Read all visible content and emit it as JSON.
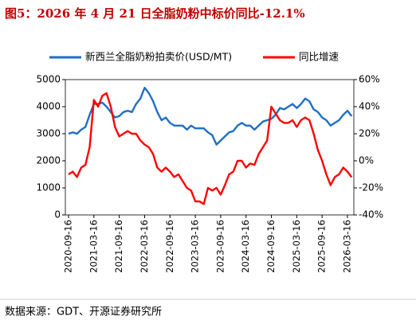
{
  "chart_data": {
    "type": "line",
    "title": "图5：2026 年 4 月 21 日全脂奶粉中标价同比-12.1%",
    "source": "数据来源：GDT、开源证券研究所",
    "categories": [
      "2020-09-16",
      null,
      null,
      null,
      null,
      null,
      "2021-03-16",
      null,
      null,
      null,
      null,
      null,
      "2021-09-16",
      null,
      null,
      null,
      null,
      null,
      "2022-03-16",
      null,
      null,
      null,
      null,
      null,
      "2022-09-16",
      null,
      null,
      null,
      null,
      null,
      "2023-03-16",
      null,
      null,
      null,
      null,
      null,
      "2023-09-16",
      null,
      null,
      null,
      null,
      null,
      "2024-03-16",
      null,
      null,
      null,
      null,
      null,
      "2024-09-16",
      null,
      null,
      null,
      null,
      null,
      "2025-03-16",
      null,
      null,
      null,
      null,
      null,
      "2025-09-16",
      null,
      null,
      null,
      null,
      null,
      "2026-03-16",
      null
    ],
    "series": [
      {
        "name": "新西兰全脂奶粉拍卖价(USD/MT)",
        "color": "#1f6fc5",
        "axis": "y",
        "values": [
          3000,
          3050,
          3000,
          3150,
          3250,
          3700,
          4100,
          4100,
          4150,
          4000,
          3800,
          3600,
          3650,
          3800,
          3850,
          3800,
          4100,
          4300,
          4700,
          4500,
          4200,
          3800,
          3500,
          3600,
          3400,
          3300,
          3300,
          3300,
          3150,
          3300,
          3200,
          3200,
          3200,
          3050,
          2950,
          2600,
          2750,
          2900,
          3050,
          3100,
          3300,
          3400,
          3300,
          3300,
          3150,
          3300,
          3450,
          3500,
          3550,
          3700,
          3950,
          3900,
          4000,
          4100,
          3950,
          4100,
          4300,
          4200,
          3900,
          3800,
          3600,
          3500,
          3300,
          3400,
          3500,
          3700,
          3850,
          3650
        ]
      },
      {
        "name": "同比增速",
        "color": "#ff0000",
        "axis": "y2",
        "values": [
          -10,
          -8,
          -12,
          -5,
          -3,
          10,
          45,
          40,
          48,
          50,
          40,
          25,
          18,
          20,
          22,
          20,
          20,
          15,
          12,
          10,
          5,
          -5,
          -8,
          -5,
          -8,
          -12,
          -10,
          -15,
          -20,
          -22,
          -30,
          -30,
          -32,
          -20,
          -22,
          -20,
          -25,
          -18,
          -10,
          -8,
          0,
          0,
          -5,
          -2,
          -3,
          5,
          10,
          15,
          40,
          35,
          30,
          28,
          28,
          30,
          25,
          30,
          32,
          30,
          20,
          8,
          0,
          -10,
          -18,
          -12,
          -10,
          -5,
          -8,
          -12.1
        ]
      }
    ],
    "ylim": [
      0,
      5000
    ],
    "yticks": [
      0,
      1000,
      2000,
      3000,
      4000,
      5000
    ],
    "y2lim": [
      -40,
      60
    ],
    "y2ticks": [
      {
        "value": -40,
        "label": "-40%"
      },
      {
        "value": -20,
        "label": "-20%"
      },
      {
        "value": 0,
        "label": "0%"
      },
      {
        "value": 20,
        "label": "20%"
      },
      {
        "value": 40,
        "label": "40%"
      },
      {
        "value": 60,
        "label": "60%"
      }
    ],
    "legend": "top"
  }
}
